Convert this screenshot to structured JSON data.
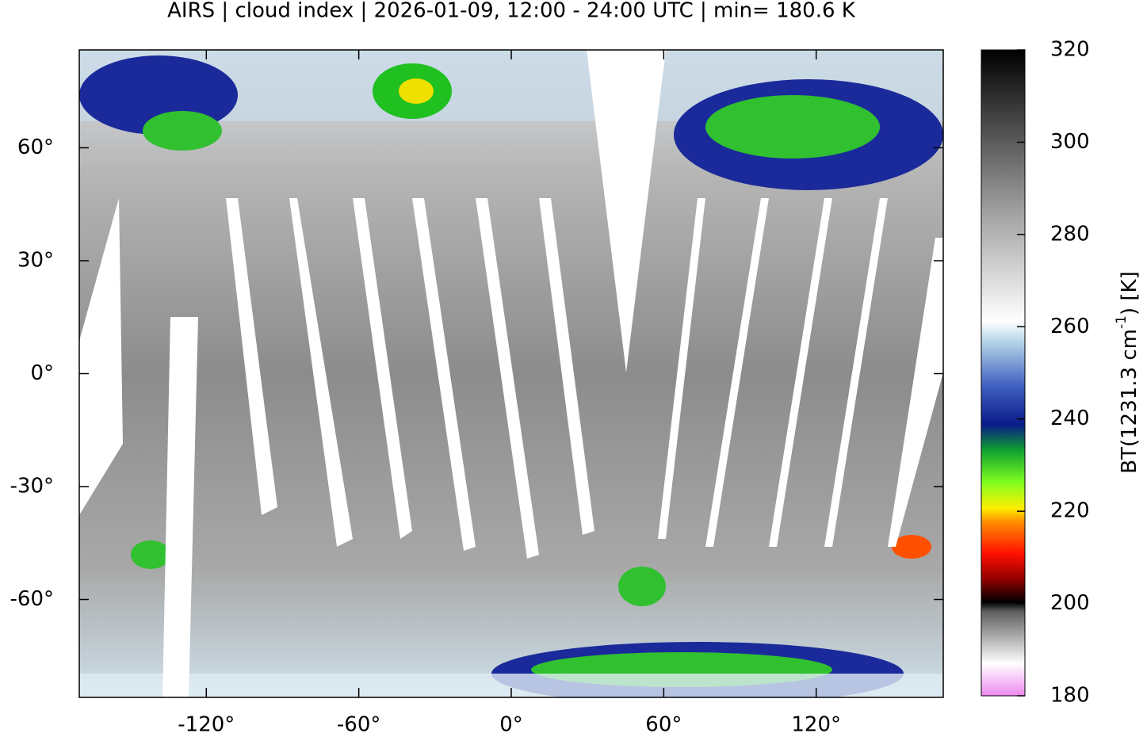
{
  "chart_data": {
    "type": "map",
    "title": "AIRS | cloud index | 2026-01-09, 12:00 - 24:00 UTC | min= 180.6 K",
    "xlim": [
      -170,
      170
    ],
    "ylim": [
      -86,
      86
    ],
    "xticks": [
      {
        "value": -120,
        "label": "-120°"
      },
      {
        "value": -60,
        "label": "-60°"
      },
      {
        "value": 0,
        "label": "0°"
      },
      {
        "value": 60,
        "label": "60°"
      },
      {
        "value": 120,
        "label": "120°"
      }
    ],
    "yticks": [
      {
        "value": 60,
        "label": "60°"
      },
      {
        "value": 30,
        "label": "30°"
      },
      {
        "value": 0,
        "label": "0°"
      },
      {
        "value": -30,
        "label": "-30°"
      },
      {
        "value": -60,
        "label": "-60°"
      }
    ],
    "colorbar": {
      "label_parts": [
        "BT(1231.3 cm",
        "-1",
        ") [K]"
      ],
      "clim": [
        180,
        320
      ],
      "ticks": [
        180,
        200,
        220,
        240,
        260,
        280,
        300,
        320
      ]
    }
  }
}
